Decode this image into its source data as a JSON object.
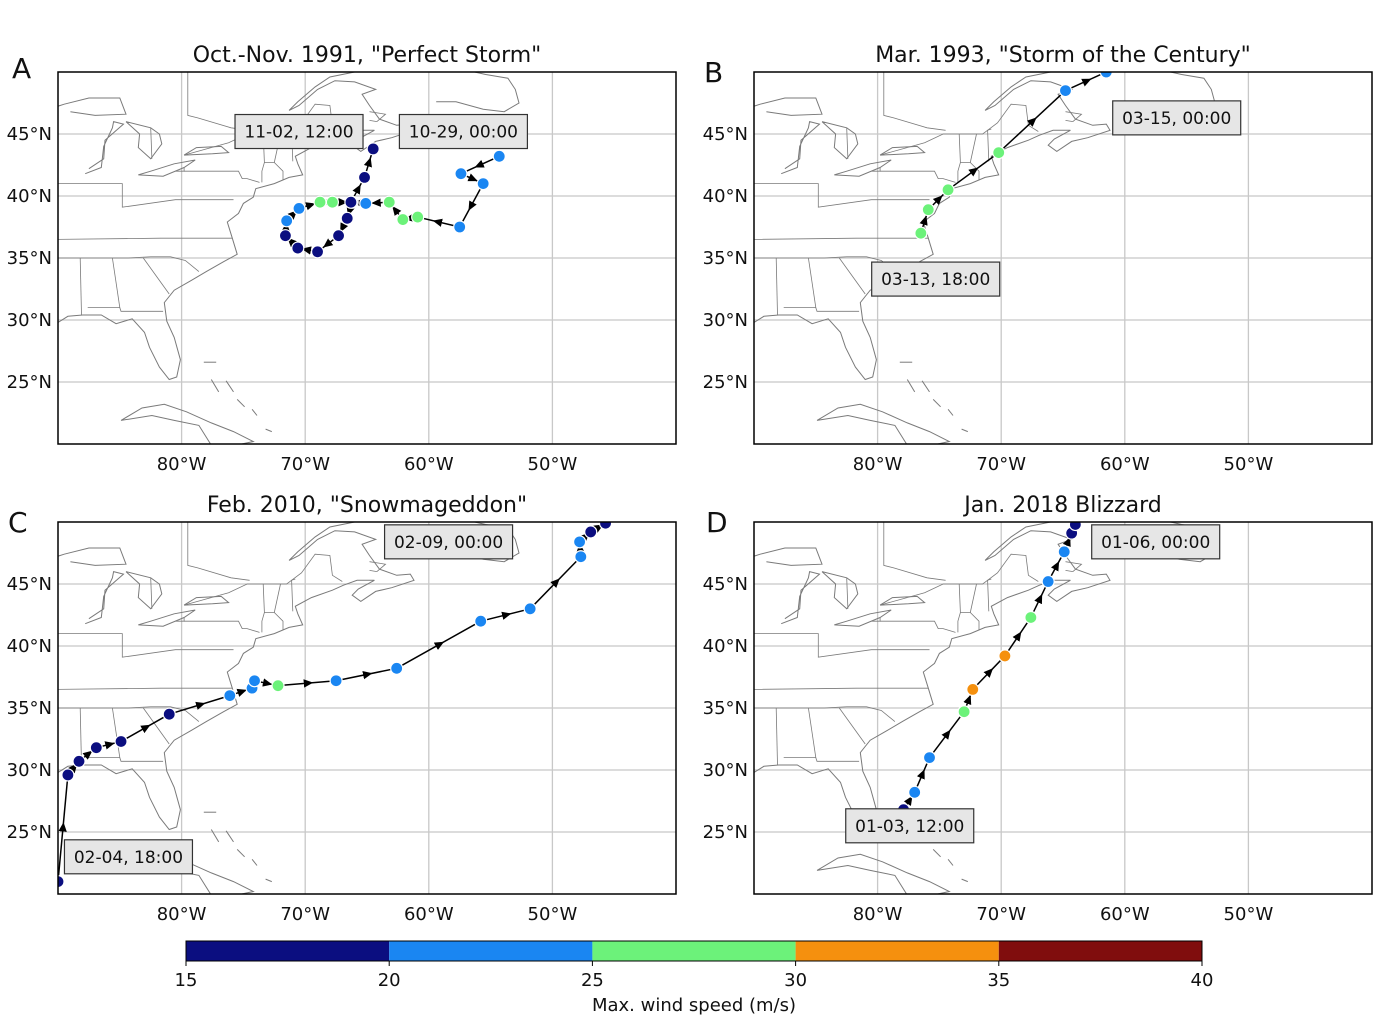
{
  "figure": {
    "lon_range": [
      -90,
      -40
    ],
    "lat_range": [
      20,
      50
    ],
    "lon_ticks": [
      -80,
      -70,
      -60,
      -50
    ],
    "lon_tick_labels": [
      "80°W",
      "70°W",
      "60°W",
      "50°W"
    ],
    "lat_ticks": [
      25,
      30,
      35,
      40,
      45
    ],
    "lat_tick_labels": [
      "25°N",
      "30°N",
      "35°N",
      "40°N",
      "45°N"
    ]
  },
  "colorbar": {
    "label": "Max. wind speed (m/s)",
    "ticks": [
      15,
      20,
      25,
      30,
      35,
      40
    ],
    "tick_labels": [
      "15",
      "20",
      "25",
      "30",
      "35",
      "40"
    ],
    "bins": [
      {
        "min": 15,
        "max": 20,
        "color": "#0b0e80"
      },
      {
        "min": 20,
        "max": 25,
        "color": "#1a86f2"
      },
      {
        "min": 25,
        "max": 30,
        "color": "#6cf27a"
      },
      {
        "min": 30,
        "max": 35,
        "color": "#f5900e"
      },
      {
        "min": 35,
        "max": 40,
        "color": "#800d0d"
      }
    ]
  },
  "chart_data": [
    {
      "type": "scatter",
      "panel": "A",
      "title": "Oct.-Nov. 1991, \"Perfect Storm\"",
      "annotations": [
        {
          "text": "11-02, 12:00",
          "lon": -70.5,
          "lat": 45.2
        },
        {
          "text": "10-29, 00:00",
          "lon": -57.2,
          "lat": 45.2
        }
      ],
      "track": [
        {
          "lon": -54.3,
          "lat": 43.2,
          "wind": 22
        },
        {
          "lon": -57.4,
          "lat": 41.8,
          "wind": 22
        },
        {
          "lon": -55.6,
          "lat": 41.0,
          "wind": 22
        },
        {
          "lon": -57.5,
          "lat": 37.5,
          "wind": 22
        },
        {
          "lon": -60.9,
          "lat": 38.3,
          "wind": 27
        },
        {
          "lon": -62.1,
          "lat": 38.1,
          "wind": 27
        },
        {
          "lon": -63.2,
          "lat": 39.5,
          "wind": 27
        },
        {
          "lon": -65.1,
          "lat": 39.4,
          "wind": 22
        },
        {
          "lon": -66.2,
          "lat": 39.5,
          "wind": 17
        },
        {
          "lon": -66.6,
          "lat": 38.2,
          "wind": 17
        },
        {
          "lon": -67.3,
          "lat": 36.8,
          "wind": 17
        },
        {
          "lon": -69.0,
          "lat": 35.5,
          "wind": 17
        },
        {
          "lon": -70.6,
          "lat": 35.8,
          "wind": 17
        },
        {
          "lon": -71.6,
          "lat": 36.8,
          "wind": 17
        },
        {
          "lon": -71.5,
          "lat": 38.0,
          "wind": 22
        },
        {
          "lon": -70.5,
          "lat": 39.0,
          "wind": 22
        },
        {
          "lon": -68.8,
          "lat": 39.5,
          "wind": 27
        },
        {
          "lon": -67.8,
          "lat": 39.5,
          "wind": 27
        },
        {
          "lon": -66.3,
          "lat": 39.5,
          "wind": 17
        },
        {
          "lon": -65.2,
          "lat": 41.5,
          "wind": 17
        },
        {
          "lon": -64.5,
          "lat": 43.8,
          "wind": 17
        }
      ]
    },
    {
      "type": "scatter",
      "panel": "B",
      "title": "Mar. 1993, \"Storm of the Century\"",
      "annotations": [
        {
          "text": "03-15, 00:00",
          "lon": -55.8,
          "lat": 46.3
        },
        {
          "text": "03-13, 18:00",
          "lon": -75.3,
          "lat": 33.3
        }
      ],
      "track": [
        {
          "lon": -76.5,
          "lat": 37.0,
          "wind": 27
        },
        {
          "lon": -75.9,
          "lat": 38.9,
          "wind": 27
        },
        {
          "lon": -74.3,
          "lat": 40.5,
          "wind": 27
        },
        {
          "lon": -70.2,
          "lat": 43.5,
          "wind": 27
        },
        {
          "lon": -64.8,
          "lat": 48.5,
          "wind": 22
        },
        {
          "lon": -61.5,
          "lat": 50.0,
          "wind": 22
        }
      ]
    },
    {
      "type": "scatter",
      "panel": "C",
      "title": "Feb. 2010, \"Snowmageddon\"",
      "annotations": [
        {
          "text": "02-09, 00:00",
          "lon": -58.4,
          "lat": 48.4
        },
        {
          "text": "02-04, 18:00",
          "lon": -84.3,
          "lat": 23.0
        }
      ],
      "track": [
        {
          "lon": -90.0,
          "lat": 21.0,
          "wind": 17
        },
        {
          "lon": -89.2,
          "lat": 29.6,
          "wind": 17
        },
        {
          "lon": -88.3,
          "lat": 30.7,
          "wind": 17
        },
        {
          "lon": -86.9,
          "lat": 31.8,
          "wind": 17
        },
        {
          "lon": -84.9,
          "lat": 32.3,
          "wind": 17
        },
        {
          "lon": -81.0,
          "lat": 34.5,
          "wind": 17
        },
        {
          "lon": -76.1,
          "lat": 36.0,
          "wind": 22
        },
        {
          "lon": -74.3,
          "lat": 36.6,
          "wind": 22
        },
        {
          "lon": -74.1,
          "lat": 37.2,
          "wind": 22
        },
        {
          "lon": -72.2,
          "lat": 36.8,
          "wind": 27
        },
        {
          "lon": -67.5,
          "lat": 37.2,
          "wind": 22
        },
        {
          "lon": -62.6,
          "lat": 38.2,
          "wind": 22
        },
        {
          "lon": -55.8,
          "lat": 42.0,
          "wind": 22
        },
        {
          "lon": -51.8,
          "lat": 43.0,
          "wind": 22
        },
        {
          "lon": -47.7,
          "lat": 47.2,
          "wind": 22
        },
        {
          "lon": -47.8,
          "lat": 48.4,
          "wind": 22
        },
        {
          "lon": -46.9,
          "lat": 49.2,
          "wind": 17
        },
        {
          "lon": -45.7,
          "lat": 49.9,
          "wind": 17
        }
      ]
    },
    {
      "type": "scatter",
      "panel": "D",
      "title": "Jan. 2018 Blizzard",
      "annotations": [
        {
          "text": "01-06, 00:00",
          "lon": -57.5,
          "lat": 48.4
        },
        {
          "text": "01-03, 12:00",
          "lon": -77.4,
          "lat": 25.5
        }
      ],
      "track": [
        {
          "lon": -77.9,
          "lat": 26.8,
          "wind": 17
        },
        {
          "lon": -77.0,
          "lat": 28.2,
          "wind": 22
        },
        {
          "lon": -75.8,
          "lat": 31.0,
          "wind": 22
        },
        {
          "lon": -73.0,
          "lat": 34.7,
          "wind": 27
        },
        {
          "lon": -72.3,
          "lat": 36.5,
          "wind": 32
        },
        {
          "lon": -69.7,
          "lat": 39.2,
          "wind": 32
        },
        {
          "lon": -67.6,
          "lat": 42.3,
          "wind": 27
        },
        {
          "lon": -66.2,
          "lat": 45.2,
          "wind": 22
        },
        {
          "lon": -64.9,
          "lat": 47.6,
          "wind": 22
        },
        {
          "lon": -64.3,
          "lat": 49.1,
          "wind": 17
        },
        {
          "lon": -64.0,
          "lat": 49.8,
          "wind": 17
        }
      ]
    }
  ]
}
